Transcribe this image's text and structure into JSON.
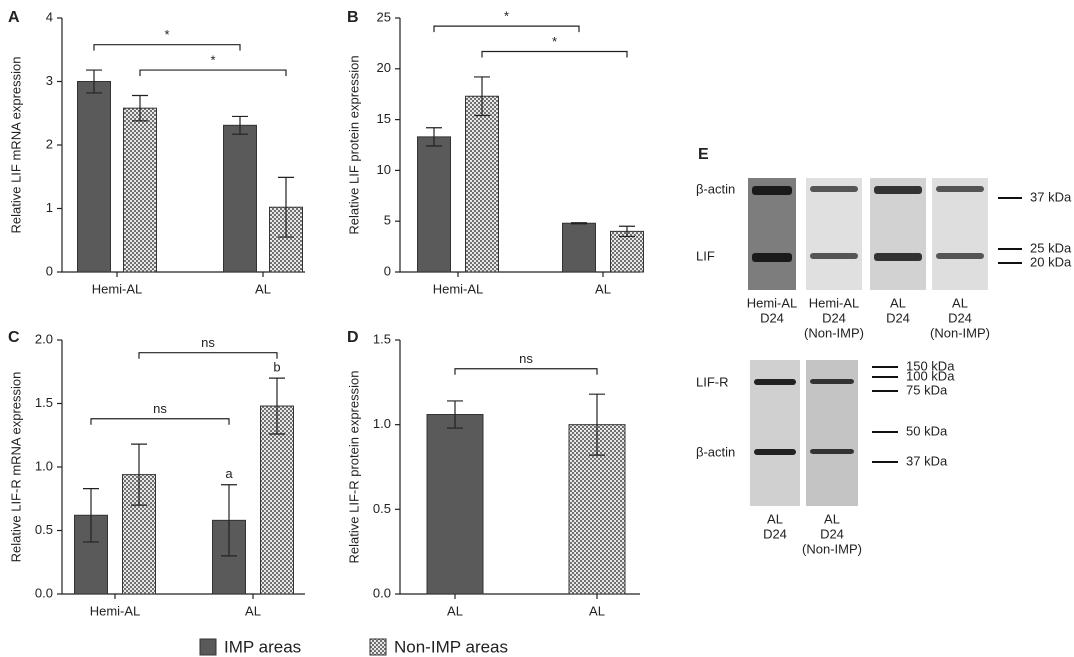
{
  "chart_data": [
    {
      "type": "bar",
      "panel": "A",
      "ylabel": "Relative LIF mRNA expression",
      "categories": [
        "Hemi-AL",
        "AL"
      ],
      "series": [
        {
          "values": [
            3.0,
            2.31
          ],
          "errors": [
            0.18,
            0.14
          ]
        },
        {
          "values": [
            2.58,
            1.02
          ],
          "errors": [
            0.2,
            0.47
          ]
        }
      ],
      "ylim": [
        0,
        4
      ],
      "yticks": [
        0,
        1,
        2,
        3,
        4
      ],
      "comparisons": [
        {
          "label": "*",
          "bars": [
            [
              0,
              1
            ],
            [
              1,
              1
            ]
          ]
        },
        {
          "label": "*",
          "bars": [
            [
              0,
              0
            ],
            [
              1,
              0
            ]
          ]
        }
      ]
    },
    {
      "type": "bar",
      "panel": "B",
      "ylabel": "Relative LIF protein expression",
      "categories": [
        "Hemi-AL",
        "AL"
      ],
      "series": [
        {
          "values": [
            13.3,
            4.8
          ],
          "errors": [
            0.9,
            0.05
          ]
        },
        {
          "values": [
            17.3,
            4.0
          ],
          "errors": [
            1.9,
            0.5
          ]
        }
      ],
      "ylim": [
        0,
        25
      ],
      "yticks": [
        0,
        5,
        10,
        15,
        20,
        25
      ],
      "comparisons": [
        {
          "label": "*",
          "bars": [
            [
              0,
              1
            ],
            [
              1,
              1
            ]
          ]
        },
        {
          "label": "*",
          "bars": [
            [
              0,
              0
            ],
            [
              1,
              0
            ]
          ]
        }
      ]
    },
    {
      "type": "bar",
      "panel": "C",
      "ylabel": "Relative LIF-R mRNA expression",
      "categories": [
        "Hemi-AL",
        "AL"
      ],
      "series": [
        {
          "values": [
            0.62,
            0.58
          ],
          "errors": [
            0.21,
            0.28
          ],
          "bar_labels": [
            null,
            "a"
          ]
        },
        {
          "values": [
            0.94,
            1.48
          ],
          "errors": [
            0.24,
            0.22
          ],
          "bar_labels": [
            null,
            "b"
          ]
        }
      ],
      "ylim": [
        0,
        2
      ],
      "yticks": [
        {
          "value": 0,
          "label": "0.0"
        },
        0.5,
        {
          "value": 1,
          "label": "1.0"
        },
        1.5,
        {
          "value": 2,
          "label": "2.0"
        }
      ],
      "comparisons": [
        {
          "label": "ns",
          "bars": [
            [
              0,
              0
            ],
            [
              1,
              0
            ]
          ]
        },
        {
          "label": "ns",
          "bars": [
            [
              0,
              1
            ],
            [
              1,
              1
            ]
          ]
        }
      ]
    },
    {
      "type": "bar",
      "panel": "D",
      "ylabel": "Relative LIF-R protein expression",
      "categories": [
        "AL",
        "AL"
      ],
      "series": [
        {
          "values": [
            1.06,
            null
          ],
          "errors": [
            0.08,
            null
          ]
        },
        {
          "values": [
            null,
            1.0
          ],
          "errors": [
            null,
            0.18
          ]
        }
      ],
      "ylim": [
        0,
        1.5
      ],
      "yticks": [
        {
          "value": 0,
          "label": "0.0"
        },
        0.5,
        {
          "value": 1,
          "label": "1.0"
        },
        1.5
      ],
      "comparisons": [
        {
          "label": "ns",
          "bars": [
            [
              0,
              0
            ],
            [
              1,
              1
            ]
          ]
        }
      ]
    }
  ],
  "legend": [
    {
      "name": "IMP areas",
      "color": "#5a5a5a"
    },
    {
      "name": "Non-IMP areas",
      "color": "#707070",
      "pattern": "checker"
    }
  ],
  "blots": {
    "panel": "E",
    "top": {
      "rows": [
        "β-actin",
        "LIF"
      ],
      "lanes": [
        [
          "Hemi-AL",
          "D24"
        ],
        [
          "Hemi-AL",
          "D24",
          "(Non-IMP)"
        ],
        [
          "AL",
          "D24"
        ],
        [
          "AL",
          "D24",
          "(Non-IMP)"
        ]
      ],
      "markers": [
        "37 kDa",
        "25 kDa",
        "20 kDa"
      ]
    },
    "bottom": {
      "rows": [
        "LIF-R",
        "β-actin"
      ],
      "lanes": [
        [
          "AL",
          "D24"
        ],
        [
          "AL",
          "D24",
          "(Non-IMP)"
        ]
      ],
      "markers": [
        "150 kDa",
        "100 kDa",
        "75 kDa",
        "50 kDa",
        "37 kDa"
      ]
    }
  }
}
